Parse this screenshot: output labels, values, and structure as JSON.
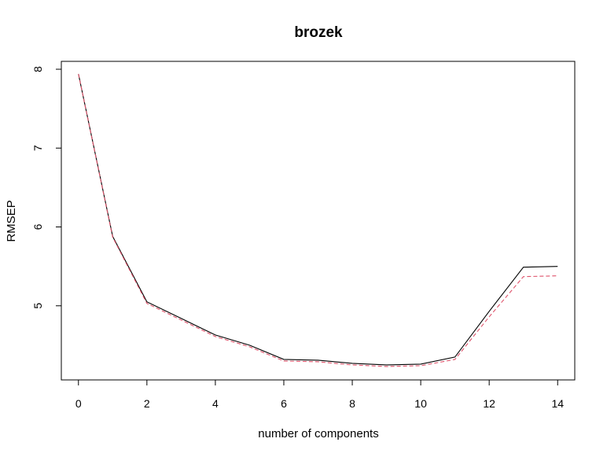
{
  "chart_data": {
    "type": "line",
    "title": "brozek",
    "xlabel": "number of components",
    "ylabel": "RMSEP",
    "xlim": [
      -0.5,
      14.5
    ],
    "ylim": [
      4.06,
      8.1
    ],
    "x_ticks": [
      0,
      2,
      4,
      6,
      8,
      10,
      12,
      14
    ],
    "y_ticks": [
      5,
      6,
      7,
      8
    ],
    "grid": false,
    "legend": "none",
    "x": [
      0,
      1,
      2,
      3,
      4,
      5,
      6,
      7,
      8,
      9,
      10,
      11,
      12,
      13,
      14
    ],
    "series": [
      {
        "values": [
          7.94,
          5.88,
          5.05,
          4.84,
          4.63,
          4.5,
          4.32,
          4.31,
          4.27,
          4.25,
          4.26,
          4.35,
          4.93,
          5.49,
          5.5
        ],
        "color": "#000000",
        "dash": "solid"
      },
      {
        "values": [
          7.94,
          5.87,
          5.03,
          4.82,
          4.61,
          4.48,
          4.3,
          4.29,
          4.25,
          4.23,
          4.24,
          4.32,
          4.86,
          5.37,
          5.38
        ],
        "color": "#DF536B",
        "dash": "dashed"
      }
    ]
  }
}
